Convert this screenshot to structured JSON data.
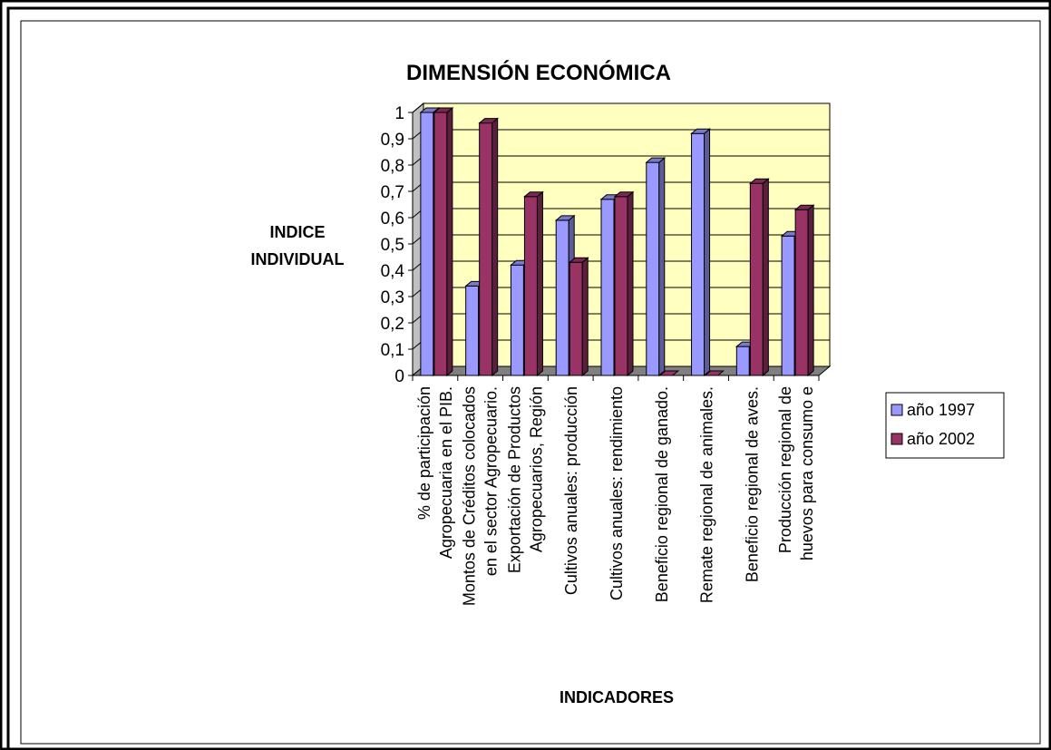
{
  "chart_data": {
    "type": "bar",
    "title": "DIMENSIÓN ECONÓMICA",
    "ylabel_lines": [
      "INDICE",
      "INDIVIDUAL"
    ],
    "xlabel": "INDICADORES",
    "ylim": [
      0,
      1
    ],
    "y_ticks": [
      "0",
      "0,1",
      "0,2",
      "0,3",
      "0,4",
      "0,5",
      "0,6",
      "0,7",
      "0,8",
      "0,9",
      "1"
    ],
    "categories": [
      [
        "% de participación",
        "Agropecuaria en el PIB."
      ],
      [
        "Montos de Créditos colocados",
        "en el sector Agropecuario."
      ],
      [
        "Exportación de Productos",
        "Agropecuarios, Región"
      ],
      [
        "Cultivos anuales: producción"
      ],
      [
        "Cultivos anuales: rendimiento"
      ],
      [
        "Beneficio regional de ganado."
      ],
      [
        "Remate regional de animales."
      ],
      [
        "Beneficio regional de aves."
      ],
      [
        "Producción regional de",
        "huevos para consumo e"
      ]
    ],
    "series": [
      {
        "name": "año 1997",
        "color": "#9999FF",
        "values": [
          1.0,
          0.34,
          0.42,
          0.59,
          0.67,
          0.81,
          0.92,
          0.11,
          0.53
        ]
      },
      {
        "name": "año 2002",
        "color": "#993366",
        "values": [
          1.0,
          0.96,
          0.68,
          0.43,
          0.68,
          0.0,
          0.0,
          0.73,
          0.63
        ]
      }
    ],
    "plot_background": "#FFFFC0",
    "floor_color": "#808080",
    "grid": true,
    "legend_position": "right"
  }
}
